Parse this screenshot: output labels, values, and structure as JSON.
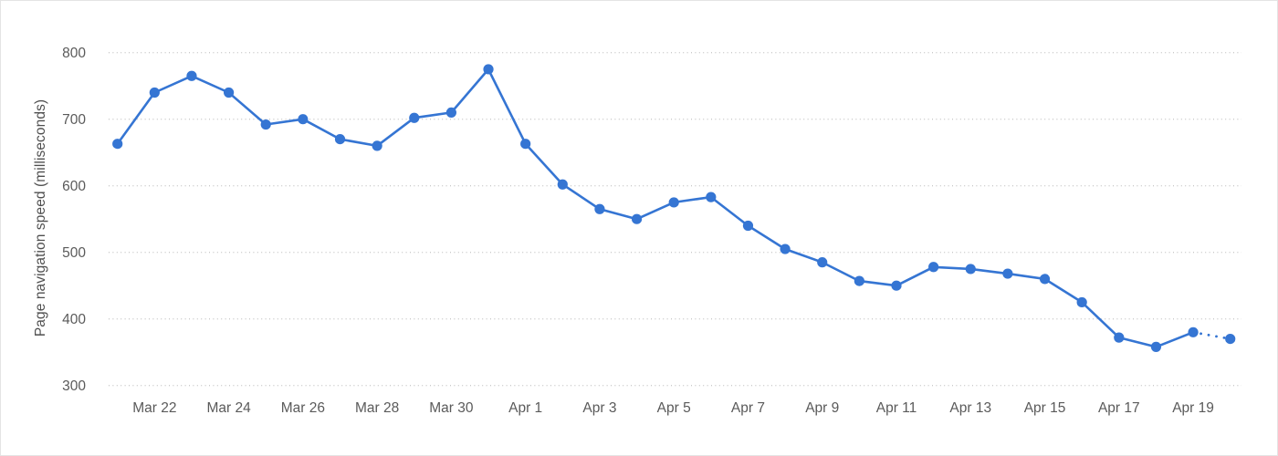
{
  "chart": {
    "accent_color": "#3575d3",
    "grid_color": "#c9c9c9",
    "text_color": "#5a5a5a",
    "border_color": "#e4e4e4",
    "background": "#ffffff"
  },
  "chart_data": {
    "type": "line",
    "title": "",
    "xlabel": "",
    "ylabel": "Page navigation speed (milliseconds)",
    "ylim": [
      300,
      800
    ],
    "yticks": [
      800,
      700,
      600,
      500,
      400,
      300
    ],
    "grid": "horizontal-dotted",
    "legend_position": "none",
    "x": [
      "Mar 21",
      "Mar 22",
      "Mar 23",
      "Mar 24",
      "Mar 25",
      "Mar 26",
      "Mar 27",
      "Mar 28",
      "Mar 29",
      "Mar 30",
      "Mar 31",
      "Apr 1",
      "Apr 2",
      "Apr 3",
      "Apr 4",
      "Apr 5",
      "Apr 6",
      "Apr 7",
      "Apr 8",
      "Apr 9",
      "Apr 10",
      "Apr 11",
      "Apr 12",
      "Apr 13",
      "Apr 14",
      "Apr 15",
      "Apr 16",
      "Apr 17",
      "Apr 18",
      "Apr 19",
      "Apr 20"
    ],
    "visible_xtick_labels": [
      "Mar 22",
      "Mar 24",
      "Mar 26",
      "Mar 28",
      "Mar 30",
      "Apr 1",
      "Apr 3",
      "Apr 5",
      "Apr 7",
      "Apr 9",
      "Apr 11",
      "Apr 13",
      "Apr 15",
      "Apr 17",
      "Apr 19"
    ],
    "series": [
      {
        "name": "Page navigation speed",
        "values": [
          663,
          740,
          765,
          740,
          692,
          700,
          670,
          660,
          702,
          710,
          775,
          663,
          602,
          565,
          550,
          575,
          583,
          540,
          505,
          485,
          457,
          450,
          478,
          475,
          468,
          460,
          425,
          372,
          358,
          380,
          370
        ]
      }
    ],
    "last_segment_style": "dotted",
    "marker": "filled-circle"
  }
}
